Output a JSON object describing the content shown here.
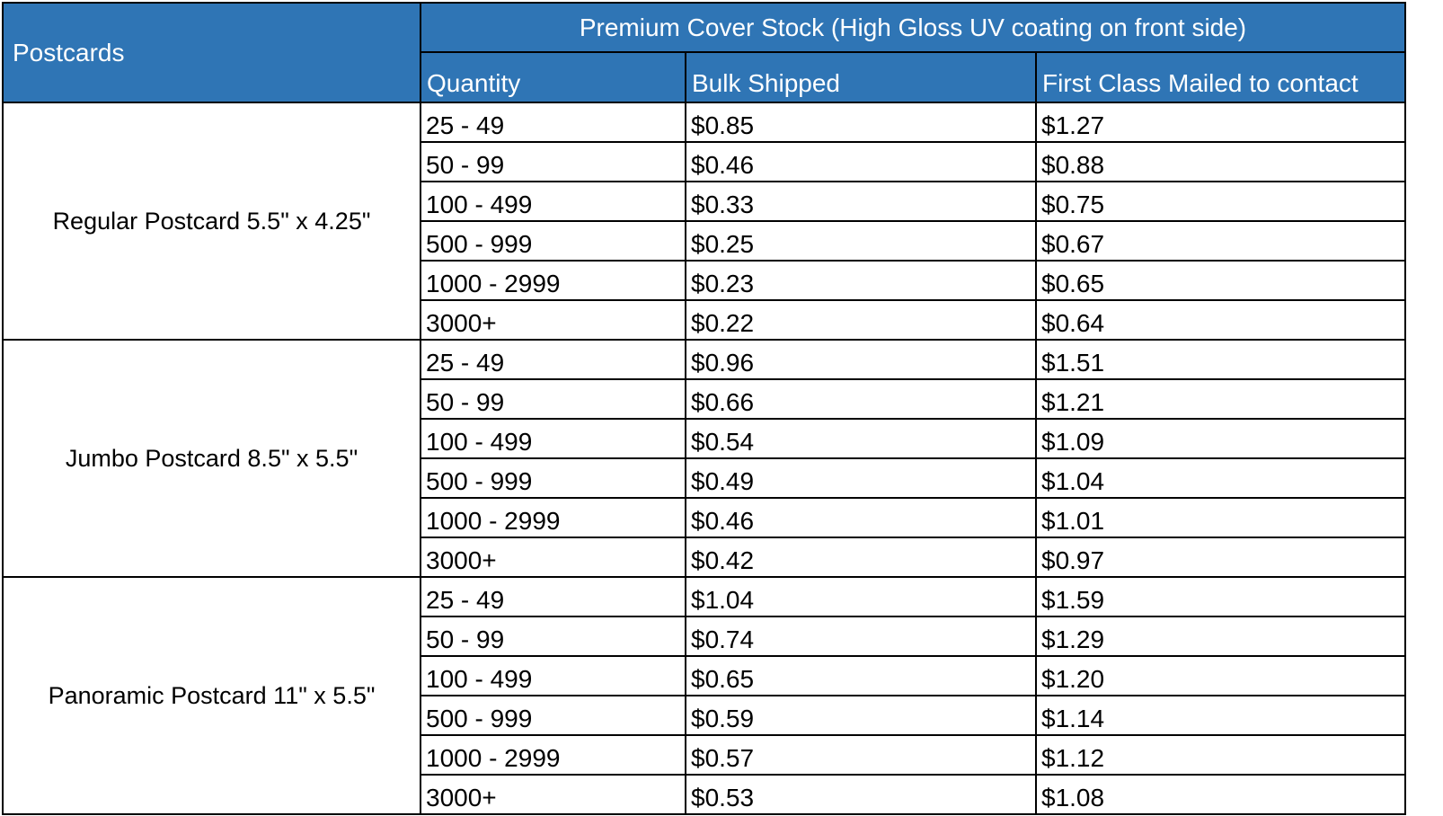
{
  "header": {
    "postcards_label": "Postcards",
    "stock_title": "Premium Cover Stock (High Gloss UV coating on front side)",
    "col_quantity": "Quantity",
    "col_bulk": "Bulk Shipped",
    "col_first_class": "First Class Mailed to contact"
  },
  "groups": [
    {
      "name": "Regular Postcard 5.5\" x 4.25\"",
      "rows": [
        {
          "qty": "25 - 49",
          "bulk": "$0.85",
          "first": "$1.27"
        },
        {
          "qty": "50 - 99",
          "bulk": "$0.46",
          "first": "$0.88"
        },
        {
          "qty": "100 - 499",
          "bulk": "$0.33",
          "first": "$0.75"
        },
        {
          "qty": "500 - 999",
          "bulk": "$0.25",
          "first": "$0.67"
        },
        {
          "qty": "1000 - 2999",
          "bulk": "$0.23",
          "first": "$0.65"
        },
        {
          "qty": "3000+",
          "bulk": "$0.22",
          "first": "$0.64"
        }
      ]
    },
    {
      "name": "Jumbo Postcard 8.5\" x 5.5\"",
      "rows": [
        {
          "qty": "25 - 49",
          "bulk": "$0.96",
          "first": "$1.51"
        },
        {
          "qty": "50 - 99",
          "bulk": "$0.66",
          "first": "$1.21"
        },
        {
          "qty": "100 - 499",
          "bulk": "$0.54",
          "first": "$1.09"
        },
        {
          "qty": "500 - 999",
          "bulk": "$0.49",
          "first": "$1.04"
        },
        {
          "qty": "1000 - 2999",
          "bulk": "$0.46",
          "first": "$1.01"
        },
        {
          "qty": "3000+",
          "bulk": "$0.42",
          "first": "$0.97"
        }
      ]
    },
    {
      "name": "Panoramic Postcard 11\" x 5.5\"",
      "rows": [
        {
          "qty": "25 - 49",
          "bulk": "$1.04",
          "first": "$1.59"
        },
        {
          "qty": "50 - 99",
          "bulk": "$0.74",
          "first": "$1.29"
        },
        {
          "qty": "100 - 499",
          "bulk": "$0.65",
          "first": "$1.20"
        },
        {
          "qty": "500 - 999",
          "bulk": "$0.59",
          "first": "$1.14"
        },
        {
          "qty": "1000 - 2999",
          "bulk": "$0.57",
          "first": "$1.12"
        },
        {
          "qty": "3000+",
          "bulk": "$0.53",
          "first": "$1.08"
        }
      ]
    }
  ],
  "colors": {
    "header_bg": "#2f75b5",
    "header_text": "#ffffff",
    "grid": "#000000"
  }
}
